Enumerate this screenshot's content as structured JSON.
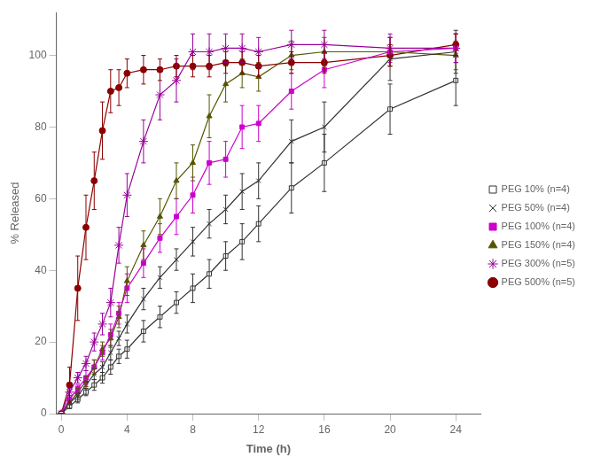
{
  "chart_data": {
    "type": "line",
    "xlabel": "Time (h)",
    "ylabel": "% Released",
    "xlim": [
      -0.3,
      25.5
    ],
    "ylim": [
      0,
      112
    ],
    "xticks": [
      0,
      4,
      8,
      12,
      16,
      20,
      24
    ],
    "yticks": [
      0,
      20,
      40,
      60,
      80,
      100
    ],
    "grid": false,
    "legend": "right",
    "x": [
      0,
      0.5,
      1,
      1.5,
      2,
      2.5,
      3,
      3.5,
      4,
      5,
      6,
      7,
      8,
      9,
      10,
      11,
      12,
      14,
      16,
      20,
      24
    ],
    "series": [
      {
        "name": "PEG 10% (n=4)",
        "color": "#333333",
        "marker": "open_square",
        "values": [
          0,
          2,
          4,
          6,
          8,
          10,
          13,
          16,
          18,
          23,
          27,
          31,
          35,
          39,
          44,
          48,
          53,
          63,
          70,
          85,
          93
        ],
        "errors": [
          0,
          0.5,
          1,
          1,
          1.5,
          1.5,
          2,
          2,
          2.5,
          3,
          3,
          3,
          4,
          4,
          4,
          5,
          5,
          7,
          8,
          7,
          7
        ]
      },
      {
        "name": "PEG 50% (n=4)",
        "color": "#333333",
        "marker": "x",
        "values": [
          0,
          3,
          5,
          8,
          11,
          13,
          17,
          21,
          25,
          32,
          38,
          43,
          48,
          53,
          57,
          62,
          65,
          76,
          80,
          99,
          101
        ],
        "errors": [
          0,
          0.5,
          1,
          1,
          1.5,
          1.5,
          2,
          2,
          2.5,
          3,
          3,
          3,
          4,
          4,
          4,
          5,
          5,
          6,
          7,
          6,
          6
        ]
      },
      {
        "name": "PEG 100% (n=4)",
        "color": "#cc00cc",
        "marker": "square",
        "values": [
          0,
          4,
          7,
          10,
          13,
          17,
          22,
          28,
          35,
          42,
          49,
          55,
          61,
          70,
          71,
          80,
          81,
          90,
          96,
          101,
          102
        ],
        "errors": [
          0,
          1,
          1,
          2,
          2,
          2,
          3,
          3,
          4,
          4,
          4,
          5,
          5,
          6,
          5,
          6,
          5,
          5,
          5,
          4,
          4
        ]
      },
      {
        "name": "PEG 150% (n=4)",
        "color": "#555500",
        "marker": "triangle",
        "values": [
          0,
          3,
          6,
          9,
          13,
          18,
          21,
          27,
          37,
          47,
          55,
          65,
          70,
          83,
          92,
          95,
          94,
          100,
          101,
          101,
          100
        ],
        "errors": [
          0,
          0.5,
          1,
          1.5,
          2,
          2,
          2.5,
          3,
          4,
          4,
          5,
          5,
          5,
          6,
          5,
          4,
          4,
          4,
          4,
          4,
          4
        ]
      },
      {
        "name": "PEG 300% (n=5)",
        "color": "#990099",
        "marker": "star",
        "values": [
          0,
          6,
          10,
          14,
          20,
          25,
          31,
          47,
          61,
          76,
          89,
          93,
          101,
          101,
          102,
          102,
          101,
          103,
          103,
          102,
          102
        ],
        "errors": [
          0,
          1,
          1.5,
          2,
          2.5,
          3,
          4,
          5,
          6,
          6,
          7,
          6,
          5,
          5,
          4,
          4,
          4,
          4,
          4,
          4,
          4
        ]
      },
      {
        "name": "PEG 500% (n=5)",
        "color": "#8B0000",
        "marker": "circle",
        "values": [
          0,
          8,
          35,
          52,
          65,
          79,
          90,
          91,
          95,
          96,
          96,
          97,
          97,
          97,
          98,
          98,
          97,
          98,
          98,
          100,
          103
        ],
        "errors": [
          0,
          5,
          9,
          9,
          8,
          8,
          6,
          5,
          4,
          4,
          3,
          3,
          3,
          3,
          3,
          3,
          3,
          3,
          3,
          3,
          3
        ]
      }
    ]
  }
}
